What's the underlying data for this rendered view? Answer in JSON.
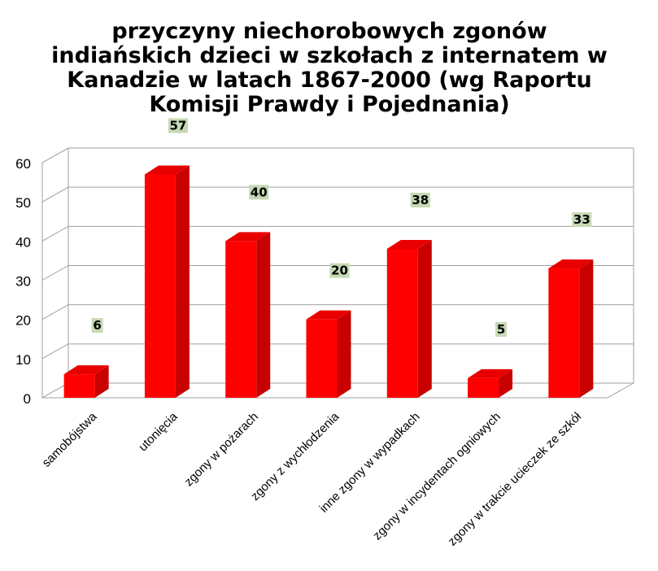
{
  "chart_data": {
    "type": "bar",
    "title": "przyczyny niechorobowych zgonów indiańskich dzieci w szkołach z internatem w Kanadzie w latach 1867-2000 (wg Raportu Komisji Prawdy i Pojednania)",
    "xlabel": "",
    "ylabel": "",
    "categories": [
      "samobójstwa",
      "utonięcia",
      "zgony w pożarach",
      "zgony z wychłodzenia",
      "inne zgony w wypadkach",
      "zgony w incydentach ogniowych",
      "zgony w trakcie ucieczek ze szkół"
    ],
    "values": [
      6,
      57,
      40,
      20,
      38,
      5,
      33
    ],
    "data_labels": [
      "6",
      "57",
      "40",
      "20",
      "38",
      "5",
      "33"
    ],
    "ylim": [
      0,
      60
    ],
    "yticks": [
      0,
      10,
      20,
      30,
      40,
      50,
      60
    ],
    "ytick_labels": [
      "0",
      "10",
      "20",
      "30",
      "40",
      "50",
      "60"
    ],
    "grid": true,
    "legend": "none",
    "bar_color": "#ff0000",
    "bar_side_color": "#c80000",
    "bar_top_color": "#e80000",
    "label_bg_color": "#c6d9b4"
  }
}
